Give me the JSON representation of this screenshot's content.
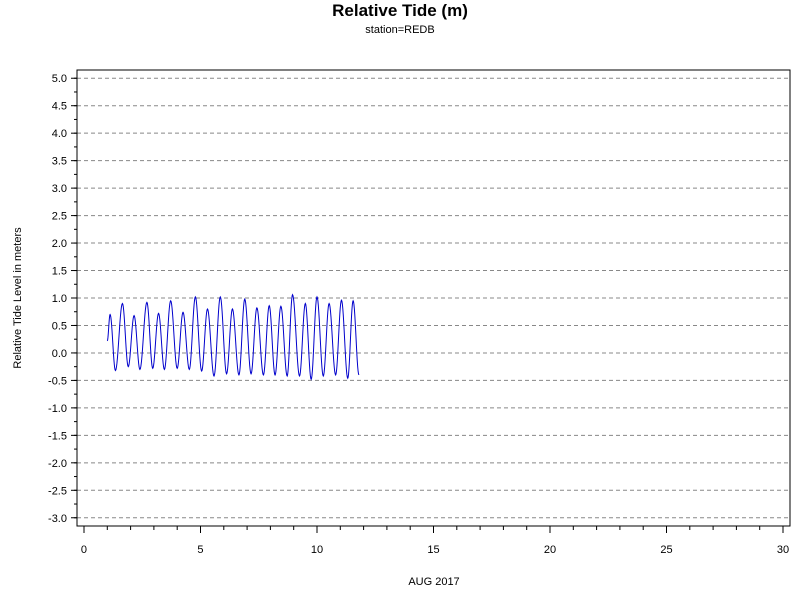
{
  "chart_data": {
    "type": "line",
    "title": "Relative Tide (m)",
    "subtitle": "station=REDB",
    "xlabel": "AUG 2017",
    "ylabel": "Relative Tide Level in meters",
    "xlim": [
      -0.3,
      30.3
    ],
    "ylim": [
      -3.15,
      5.15
    ],
    "x_ticks": [
      0,
      5,
      10,
      15,
      20,
      25,
      30
    ],
    "x_tick_labels": [
      "0",
      "5",
      "10",
      "15",
      "20",
      "25",
      "30"
    ],
    "x_minor_step": 1,
    "y_ticks": [
      5.0,
      4.5,
      4.0,
      3.5,
      3.0,
      2.5,
      2.0,
      1.5,
      1.0,
      0.5,
      0.0,
      -0.5,
      -1.0,
      -1.5,
      -2.0,
      -2.5,
      -3.0
    ],
    "y_tick_labels": [
      "5.0",
      "4.5",
      "4.0",
      "3.5",
      "3.0",
      "2.5",
      "2.0",
      "1.5",
      "1.0",
      "0.5",
      "0.0",
      "-0.5",
      "-1.0",
      "-1.5",
      "-2.0",
      "-2.5",
      "-3.0"
    ],
    "y_minor_step": 0.25,
    "grid": {
      "y_major_dashed": true,
      "x": false
    },
    "line_color": "#0000cc",
    "series": [
      {
        "turning_points": [
          [
            1.0,
            0.22
          ],
          [
            1.12,
            0.7
          ],
          [
            1.35,
            -0.32
          ],
          [
            1.65,
            0.9
          ],
          [
            1.9,
            -0.25
          ],
          [
            2.15,
            0.68
          ],
          [
            2.4,
            -0.3
          ],
          [
            2.7,
            0.92
          ],
          [
            2.95,
            -0.28
          ],
          [
            3.2,
            0.72
          ],
          [
            3.45,
            -0.3
          ],
          [
            3.72,
            0.95
          ],
          [
            4.0,
            -0.28
          ],
          [
            4.25,
            0.74
          ],
          [
            4.52,
            -0.3
          ],
          [
            4.78,
            1.02
          ],
          [
            5.05,
            -0.33
          ],
          [
            5.3,
            0.8
          ],
          [
            5.58,
            -0.42
          ],
          [
            5.85,
            1.02
          ],
          [
            6.12,
            -0.38
          ],
          [
            6.37,
            0.8
          ],
          [
            6.65,
            -0.4
          ],
          [
            6.9,
            0.98
          ],
          [
            7.17,
            -0.38
          ],
          [
            7.42,
            0.82
          ],
          [
            7.7,
            -0.4
          ],
          [
            7.95,
            0.86
          ],
          [
            8.2,
            -0.4
          ],
          [
            8.45,
            0.85
          ],
          [
            8.72,
            -0.42
          ],
          [
            8.95,
            1.06
          ],
          [
            9.25,
            -0.42
          ],
          [
            9.5,
            0.9
          ],
          [
            9.75,
            -0.48
          ],
          [
            10.0,
            1.02
          ],
          [
            10.27,
            -0.42
          ],
          [
            10.52,
            0.9
          ],
          [
            10.8,
            -0.4
          ],
          [
            11.05,
            0.96
          ],
          [
            11.32,
            -0.46
          ],
          [
            11.55,
            0.95
          ],
          [
            11.8,
            -0.4
          ]
        ]
      }
    ]
  }
}
